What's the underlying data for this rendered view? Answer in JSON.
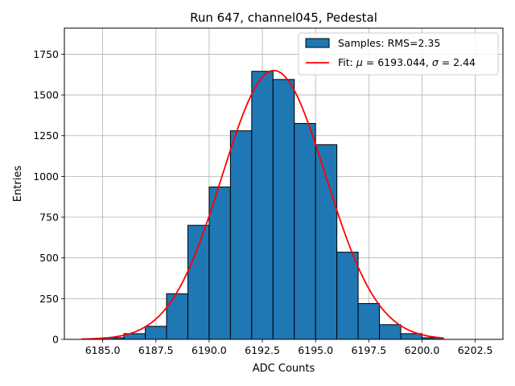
{
  "chart_data": {
    "type": "bar",
    "title": "Run 647, channel045, Pedestal",
    "xlabel": "ADC Counts",
    "ylabel": "Entries",
    "xlim": [
      6183.2,
      6203.8
    ],
    "ylim": [
      0,
      1910
    ],
    "xticks": [
      6185.0,
      6187.5,
      6190.0,
      6192.5,
      6195.0,
      6197.5,
      6200.0,
      6202.5
    ],
    "xtick_labels": [
      "6185.0",
      "6187.5",
      "6190.0",
      "6192.5",
      "6195.0",
      "6197.5",
      "6200.0",
      "6202.5"
    ],
    "yticks": [
      0,
      250,
      500,
      750,
      1000,
      1250,
      1500,
      1750
    ],
    "ytick_labels": [
      "0",
      "250",
      "500",
      "750",
      "1000",
      "1250",
      "1500",
      "1750"
    ],
    "grid": true,
    "legend_position": "top-right",
    "histogram": {
      "name": "Samples: RMS=2.35",
      "color": "#1f77b4",
      "edgecolor": "#000000",
      "bins": [
        {
          "x0": 6185,
          "x1": 6186,
          "value": 10
        },
        {
          "x0": 6186,
          "x1": 6187,
          "value": 35
        },
        {
          "x0": 6187,
          "x1": 6188,
          "value": 80
        },
        {
          "x0": 6188,
          "x1": 6189,
          "value": 280
        },
        {
          "x0": 6189,
          "x1": 6190,
          "value": 700
        },
        {
          "x0": 6190,
          "x1": 6191,
          "value": 935
        },
        {
          "x0": 6191,
          "x1": 6192,
          "value": 1280
        },
        {
          "x0": 6192,
          "x1": 6193,
          "value": 1645
        },
        {
          "x0": 6193,
          "x1": 6194,
          "value": 1595
        },
        {
          "x0": 6194,
          "x1": 6195,
          "value": 1325
        },
        {
          "x0": 6195,
          "x1": 6196,
          "value": 1195
        },
        {
          "x0": 6196,
          "x1": 6197,
          "value": 535
        },
        {
          "x0": 6197,
          "x1": 6198,
          "value": 220
        },
        {
          "x0": 6198,
          "x1": 6199,
          "value": 90
        },
        {
          "x0": 6199,
          "x1": 6200,
          "value": 35
        },
        {
          "x0": 6200,
          "x1": 6201,
          "value": 10
        }
      ]
    },
    "fit": {
      "name_prefix": "Fit: ",
      "mu_symbol": "μ",
      "mu_value": " = 6193.044, ",
      "sigma_symbol": "σ",
      "sigma_value": " = 2.44",
      "type": "gaussian",
      "mu": 6193.044,
      "sigma": 2.44,
      "amplitude": 1650,
      "x_range": [
        6184,
        6201
      ],
      "color": "#ff0000"
    }
  }
}
